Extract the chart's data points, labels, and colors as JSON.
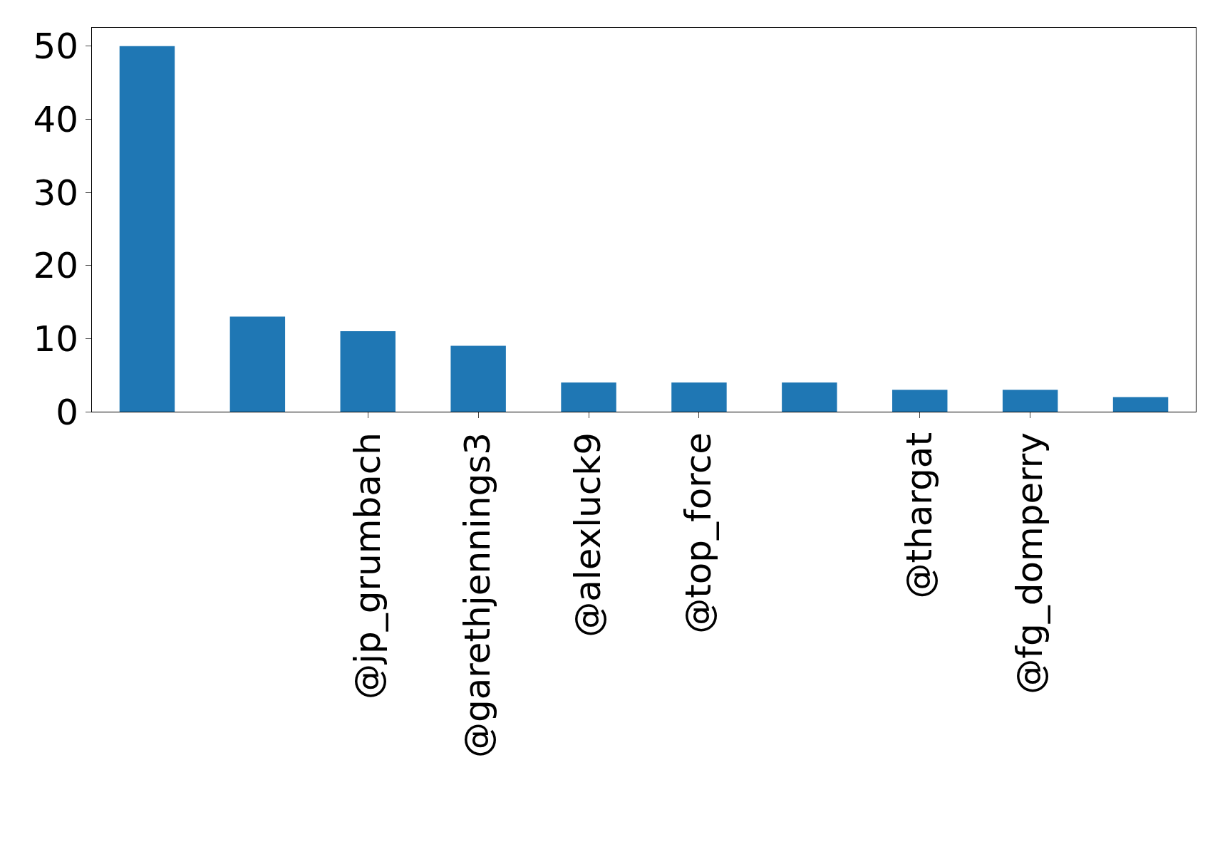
{
  "chart_data": {
    "type": "bar",
    "categories": [
      null,
      null,
      "@jp_grumbach",
      "@garethjennings3",
      "@alexluck9",
      "@top_force",
      null,
      "@thargat",
      "@fg_domperry",
      null
    ],
    "values": [
      50,
      13,
      11,
      9,
      4,
      4,
      4,
      3,
      3,
      2
    ],
    "color": "#1f77b4",
    "ylim": [
      0,
      52.5
    ],
    "yticks": [
      0,
      10,
      20,
      30,
      40,
      50
    ],
    "legend": false
  }
}
